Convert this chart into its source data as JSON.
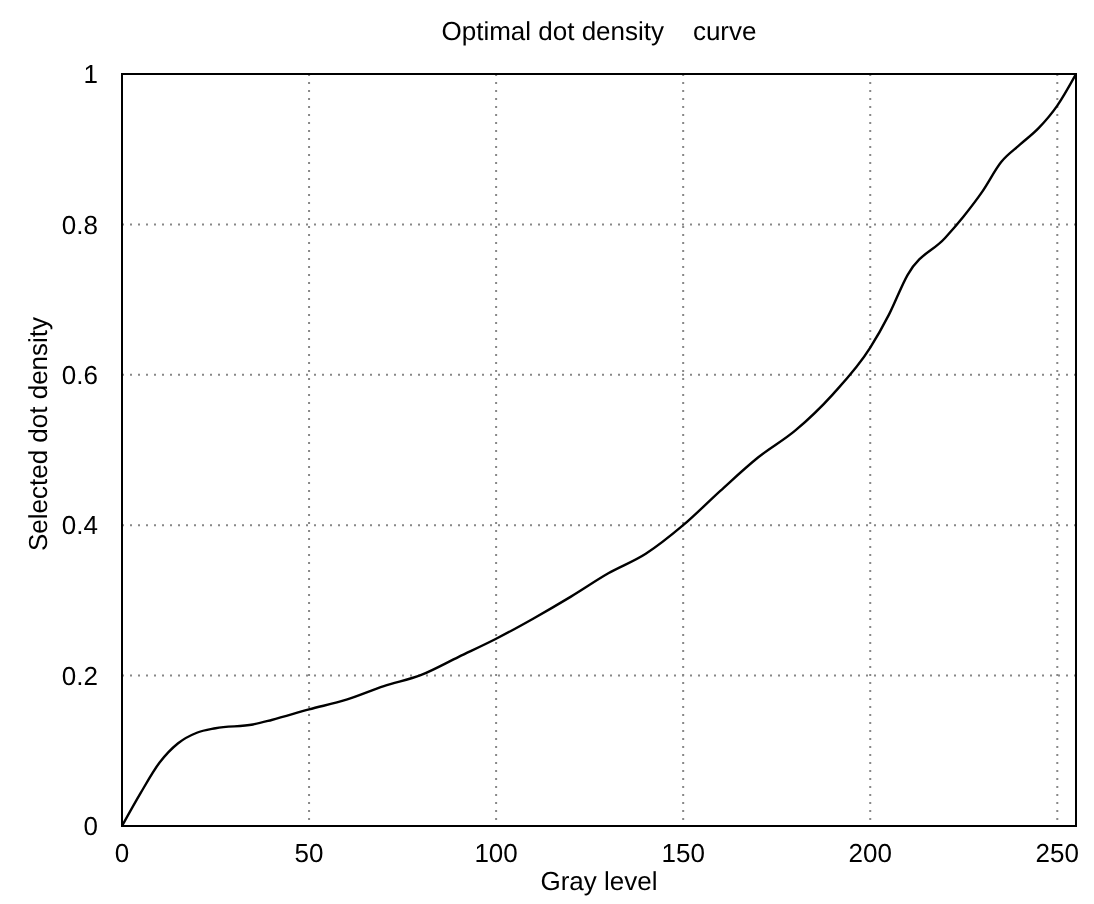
{
  "chart_data": {
    "type": "line",
    "title": "Optimal dot density    curve",
    "xlabel": "Gray level",
    "ylabel": "Selected dot density",
    "x": [
      0,
      5,
      10,
      15,
      20,
      25,
      35,
      40,
      50,
      60,
      70,
      80,
      90,
      100,
      110,
      120,
      130,
      140,
      150,
      160,
      170,
      180,
      190,
      200,
      205,
      210,
      220,
      225,
      230,
      235,
      240,
      245,
      250,
      255
    ],
    "series": [
      {
        "color": "#000000",
        "values": [
          0,
          0.044,
          0.084,
          0.11,
          0.124,
          0.13,
          0.135,
          0.141,
          0.155,
          0.168,
          0.186,
          0.201,
          0.225,
          0.249,
          0.276,
          0.305,
          0.336,
          0.362,
          0.4,
          0.446,
          0.49,
          0.526,
          0.574,
          0.636,
          0.68,
          0.733,
          0.782,
          0.811,
          0.844,
          0.883,
          0.906,
          0.928,
          0.958,
          1
        ]
      }
    ],
    "xlim": [
      0,
      255
    ],
    "xticks": [
      0,
      50,
      100,
      150,
      200,
      250
    ],
    "ylim": [
      0,
      1
    ],
    "yticks": [
      0,
      0.2,
      0.4,
      0.6,
      0.8,
      1
    ],
    "grid": true,
    "marker": "none",
    "line_style": "solid"
  }
}
